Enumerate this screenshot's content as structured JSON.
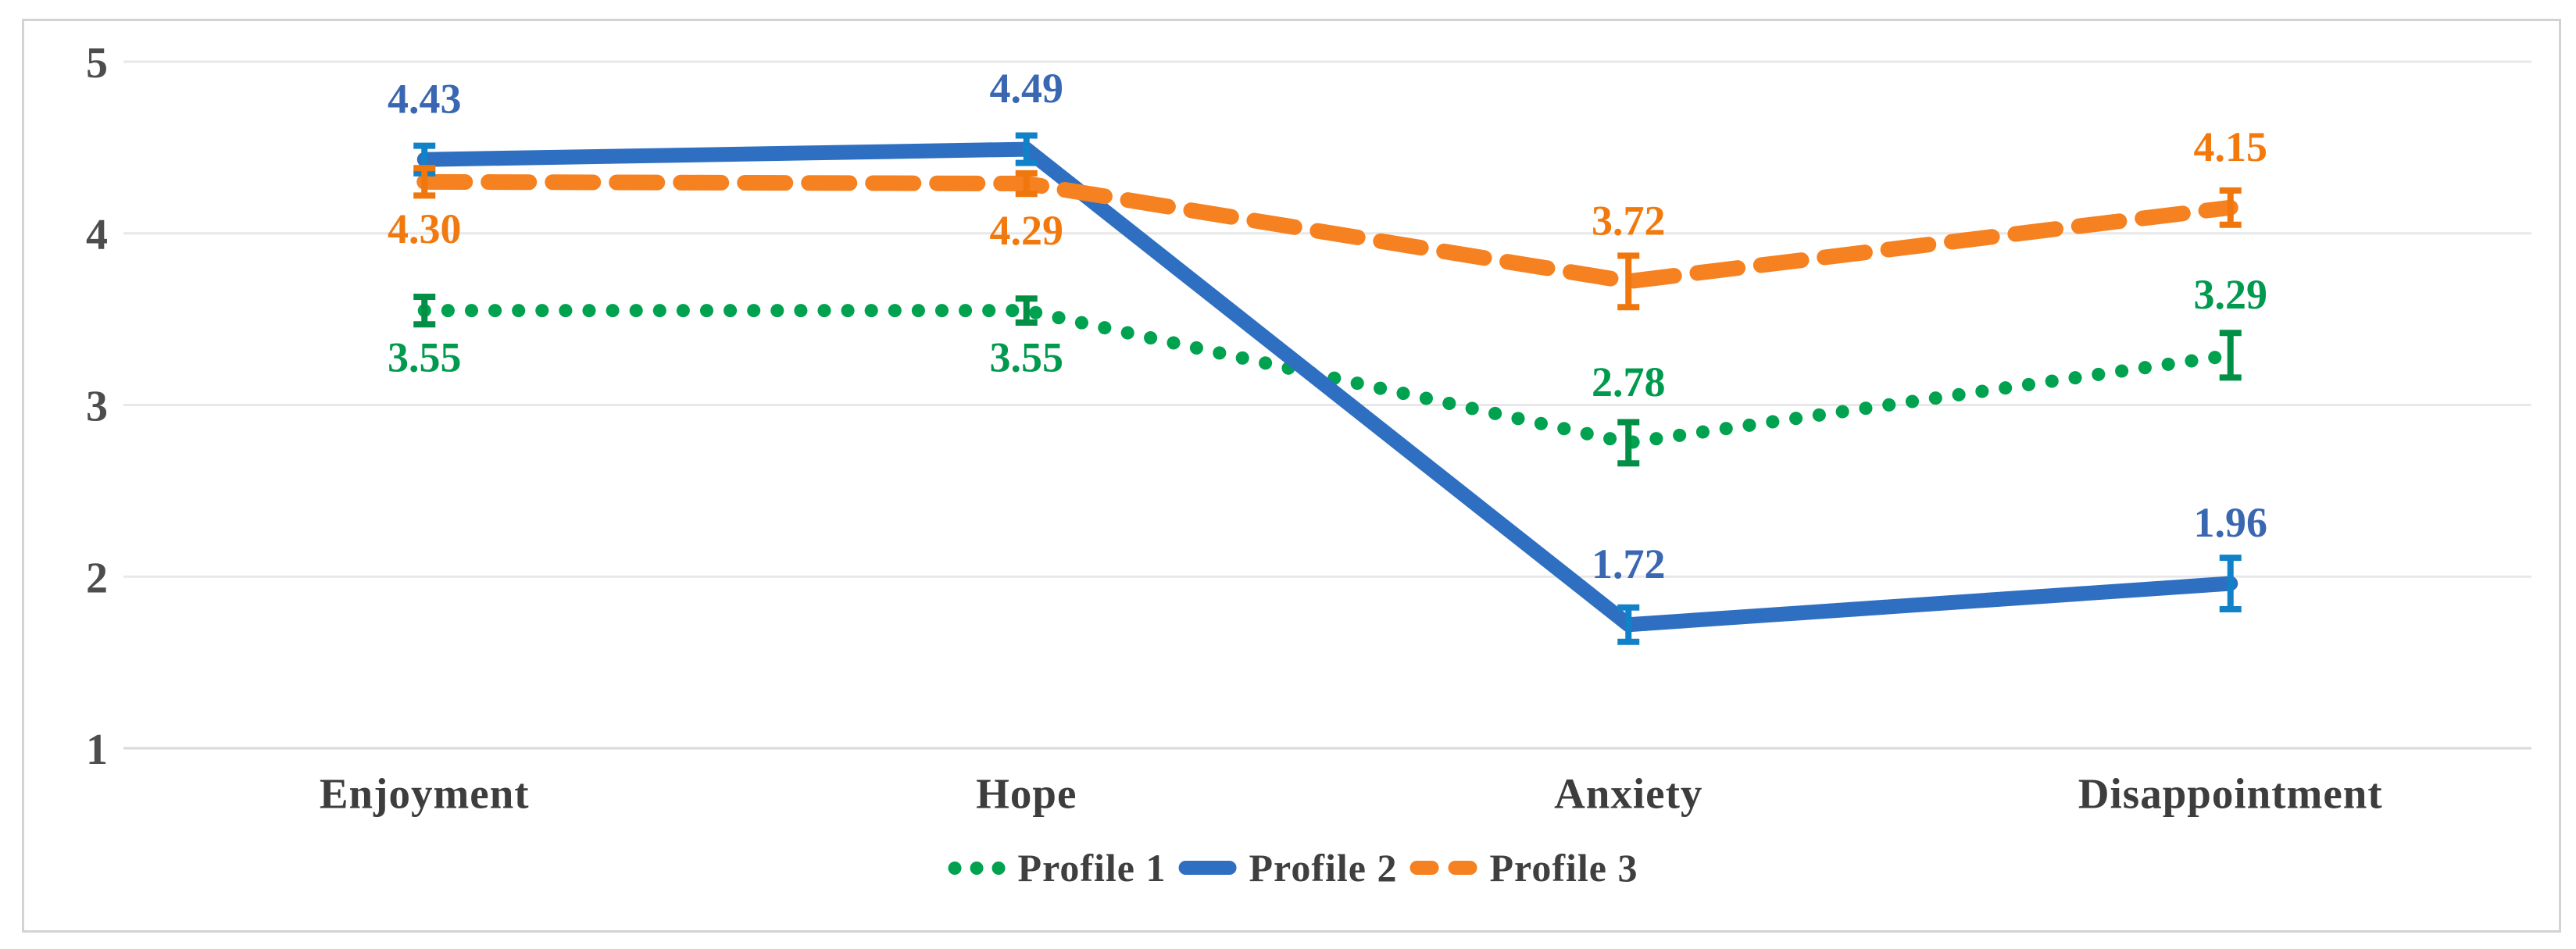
{
  "figure": {
    "background_color": "#ffffff",
    "border_color": "#d3d3d3"
  },
  "axis": {
    "tick_label_color": "#4d4d4d",
    "category_label_color": "#3d3d3d",
    "gridline_color": "#e8e8e8",
    "baseline_color": "#d9d9d9"
  },
  "legend": {
    "text_color": "#3f3f3f",
    "items": [
      {
        "label": "Profile 1",
        "marker": "dotted"
      },
      {
        "label": "Profile 2",
        "marker": "solid"
      },
      {
        "label": "Profile 3",
        "marker": "dashed"
      }
    ]
  },
  "chart_data": {
    "type": "line",
    "categories": [
      "Enjoyment",
      "Hope",
      "Anxiety",
      "Disappointment"
    ],
    "series": [
      {
        "name": "Profile 1",
        "style": "dotted",
        "color": "#00a24f",
        "label_color": "#009a4e",
        "error_color": "#008f45",
        "values": [
          3.55,
          3.55,
          2.78,
          3.29
        ],
        "errors": [
          0.08,
          0.07,
          0.12,
          0.13
        ],
        "label_pos": [
          "below",
          "below",
          "above",
          "above"
        ],
        "data_labels": [
          "3.55",
          "3.55",
          "2.78",
          "3.29"
        ]
      },
      {
        "name": "Profile 2",
        "style": "solid",
        "color": "#2f6fc2",
        "label_color": "#3a67b1",
        "error_color": "#1282c8",
        "values": [
          4.43,
          4.49,
          1.72,
          1.96
        ],
        "errors": [
          0.08,
          0.08,
          0.1,
          0.15
        ],
        "label_pos": [
          "above",
          "above",
          "above",
          "above"
        ],
        "data_labels": [
          "4.43",
          "4.49",
          "1.72",
          "1.96"
        ]
      },
      {
        "name": "Profile 3",
        "style": "dashed",
        "color": "#f68120",
        "label_color": "#f2790d",
        "error_color": "#f0770e",
        "values": [
          4.3,
          4.29,
          3.72,
          4.15
        ],
        "errors": [
          0.08,
          0.06,
          0.15,
          0.1
        ],
        "label_pos": [
          "below",
          "below",
          "above",
          "above"
        ],
        "data_labels": [
          "4.30",
          "4.29",
          "3.72",
          "4.15"
        ]
      }
    ],
    "title": "",
    "xlabel": "",
    "ylabel": "",
    "ylim": [
      1,
      5
    ],
    "yticks": [
      1,
      2,
      3,
      4,
      5
    ],
    "ytick_labels": [
      "1",
      "2",
      "3",
      "4",
      "5"
    ],
    "grid": true,
    "error_bars": true,
    "legend_position": "bottom-center"
  }
}
